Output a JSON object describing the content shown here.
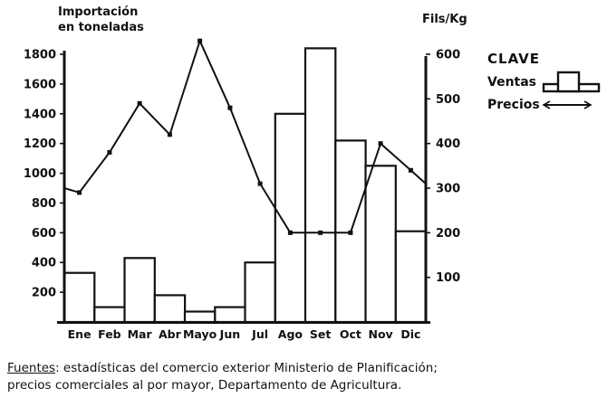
{
  "colors": {
    "ink": "#111111",
    "paper": "#ffffff"
  },
  "axis_title_left": {
    "line1": "Importación",
    "line2": "en toneladas"
  },
  "axis_title_right": "Fils/Kg",
  "legend": {
    "title": "CLAVE",
    "ventas_label": "Ventas",
    "precios_label": "Precios"
  },
  "footer": {
    "label": "Fuentes",
    "line1_rest": ": estadísticas del comercio exterior Ministerio de Planificación;",
    "line2": "precios comerciales al por mayor, Departamento de Agricultura."
  },
  "chart_data": {
    "type": "bar",
    "subtype": "bar+line combo, dual axis",
    "title": "",
    "categories": [
      "Ene",
      "Feb",
      "Mar",
      "Abr",
      "Mayo",
      "Jun",
      "Jul",
      "Ago",
      "Set",
      "Oct",
      "Nov",
      "Dic"
    ],
    "series": [
      {
        "name": "Ventas",
        "type": "bar",
        "axis": "left",
        "unit": "toneladas",
        "values": [
          330,
          100,
          430,
          180,
          70,
          100,
          400,
          1400,
          1840,
          1220,
          1050,
          610
        ]
      },
      {
        "name": "Precios",
        "type": "line",
        "axis": "right",
        "unit": "Fils/Kg",
        "values": [
          290,
          380,
          490,
          420,
          630,
          480,
          310,
          200,
          200,
          200,
          400,
          340
        ],
        "line_start_at_axis": 300,
        "line_end_at_axis": 310
      }
    ],
    "left_axis": {
      "title": "Importación en toneladas",
      "min": 0,
      "max": 1800,
      "ticks": [
        200,
        400,
        600,
        800,
        1000,
        1200,
        1400,
        1600,
        1800
      ]
    },
    "right_axis": {
      "title": "Fils/Kg",
      "min": 0,
      "max": 600,
      "ticks": [
        100,
        200,
        300,
        400,
        500,
        600
      ]
    },
    "grid": false,
    "legend_position": "right",
    "style": "black-and-white scanned hand-drawn figure, white bars with black outline, black line with square markers"
  }
}
